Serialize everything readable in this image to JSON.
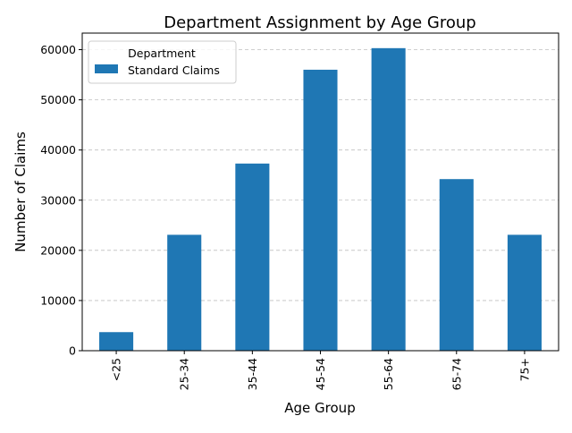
{
  "chart_data": {
    "type": "bar",
    "title": "Department Assignment by Age Group",
    "xlabel": "Age Group",
    "ylabel": "Number of Claims",
    "categories": [
      "<25",
      "25-34",
      "35-44",
      "45-54",
      "55-64",
      "65-74",
      "75+"
    ],
    "series": [
      {
        "name": "Standard Claims",
        "color": "#1f77b4",
        "values": [
          3700,
          23100,
          37300,
          56000,
          60300,
          34200,
          23100
        ]
      }
    ],
    "ylim": [
      0,
      63300
    ],
    "yticks": [
      0,
      10000,
      20000,
      30000,
      40000,
      50000,
      60000
    ],
    "ytick_labels": [
      "0",
      "10000",
      "20000",
      "30000",
      "40000",
      "50000",
      "60000"
    ],
    "grid": "y-dashed",
    "legend": {
      "title": "Department",
      "placement": "top-left"
    }
  }
}
